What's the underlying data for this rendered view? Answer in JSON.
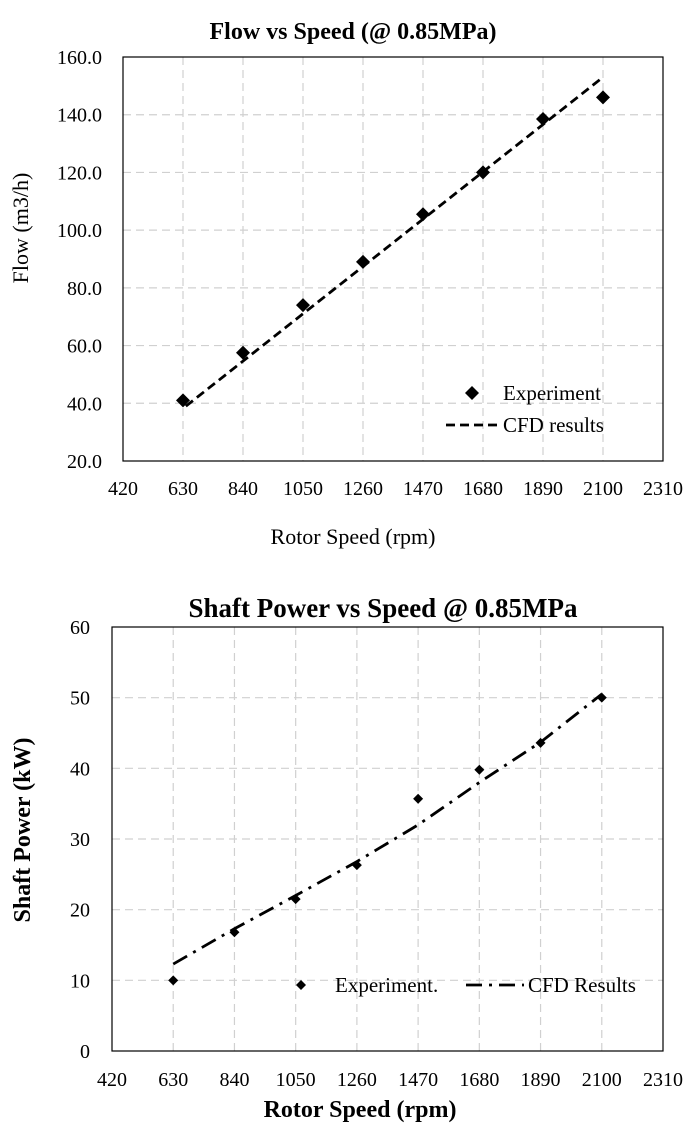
{
  "chart_data": [
    {
      "type": "scatter",
      "title": "Flow vs Speed (@ 0.85MPa)",
      "xlabel": "Rotor Speed (rpm)",
      "ylabel": "Flow (m3/h)",
      "xlim": [
        420,
        2310
      ],
      "ylim": [
        20,
        160
      ],
      "xticks": [
        "420",
        "630",
        "840",
        "1050",
        "1260",
        "1470",
        "1680",
        "1890",
        "2100",
        "2310"
      ],
      "yticks": [
        "20.0",
        "40.0",
        "60.0",
        "80.0",
        "100.0",
        "120.0",
        "140.0",
        "160.0"
      ],
      "grid": true,
      "legend_position": "bottom-right",
      "series": [
        {
          "name": "Experiment",
          "kind": "markers",
          "marker": "diamond",
          "x": [
            630,
            840,
            1050,
            1260,
            1470,
            1680,
            1890,
            2100
          ],
          "y": [
            41.0,
            57.5,
            74.0,
            89.0,
            105.5,
            120.0,
            138.5,
            146.0
          ]
        },
        {
          "name": "CFD results",
          "kind": "line",
          "dash": "dashed",
          "x": [
            640,
            2100
          ],
          "y": [
            39.0,
            153.0
          ]
        }
      ]
    },
    {
      "type": "scatter",
      "title": "Shaft Power vs Speed @ 0.85MPa",
      "xlabel": "Rotor Speed (rpm)",
      "ylabel": "Shaft Power (kW)",
      "xlim": [
        420,
        2310
      ],
      "ylim": [
        0,
        60
      ],
      "xticks": [
        "420",
        "630",
        "840",
        "1050",
        "1260",
        "1470",
        "1680",
        "1890",
        "2100",
        "2310"
      ],
      "yticks": [
        "0",
        "10",
        "20",
        "30",
        "40",
        "50",
        "60"
      ],
      "grid": true,
      "legend_position": "bottom-right",
      "series": [
        {
          "name": "Experiment.",
          "kind": "markers",
          "marker": "diamond",
          "x": [
            630,
            840,
            1050,
            1260,
            1470,
            1680,
            1890,
            2100
          ],
          "y": [
            10.0,
            16.8,
            21.5,
            26.3,
            35.7,
            39.8,
            43.6,
            50.0
          ]
        },
        {
          "name": "CFD Results",
          "kind": "line",
          "dash": "dash-dot",
          "x": [
            630,
            840,
            1050,
            1260,
            1470,
            1680,
            1890,
            2100
          ],
          "y": [
            12.3,
            17.3,
            22.0,
            26.8,
            32.0,
            38.0,
            43.7,
            50.5
          ]
        }
      ]
    }
  ]
}
